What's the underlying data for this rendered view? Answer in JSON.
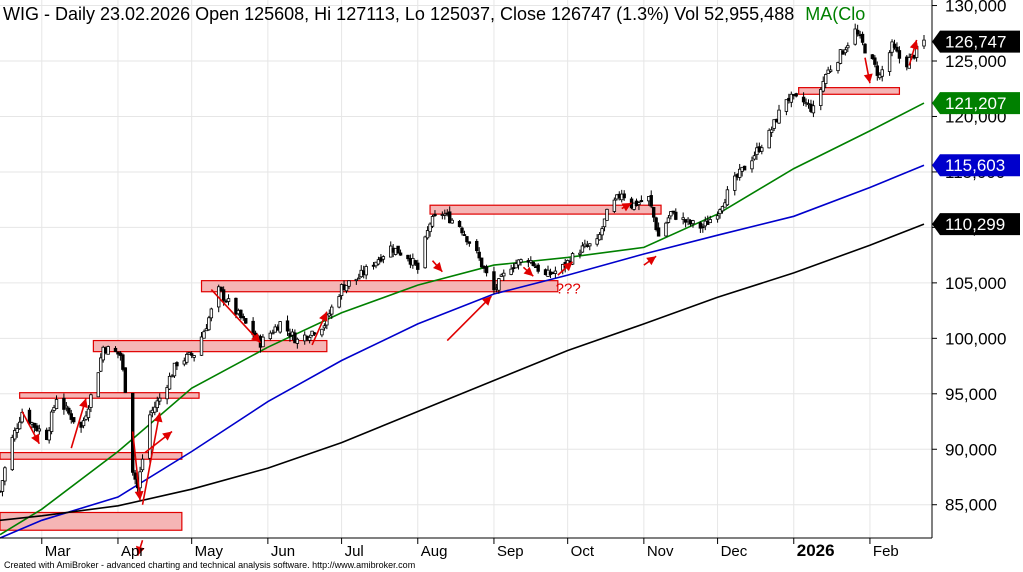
{
  "header": {
    "title_main": "WIG - Daily 23.02.2026 Open 125608, Hi 127113, Lo 125037, Close 126747 (1.3%) Vol 52,955,488",
    "title_ma": "MA(Clo"
  },
  "footer": {
    "credit": "Created with AmiBroker - advanced charting and technical analysis software. http://www.amibroker.com"
  },
  "annotation_text": "???",
  "colors": {
    "price": "#000000",
    "ma_green": "#008000",
    "ma_blue": "#0000cc",
    "ma_black": "#000000",
    "zone_fill": "#f5b5b5",
    "zone_stroke": "#e00000",
    "arrow": "#e00000",
    "ma_label_color": "#008000"
  },
  "chart_data": {
    "type": "candlestick",
    "title": "WIG - Daily 23.02.2026 Open 125608, Hi 127113, Lo 125037, Close 126747 (1.3%) Vol 52,955,488",
    "x_start": "2025-02-12",
    "x_end": "2026-02-23",
    "ylim": [
      82000,
      130500
    ],
    "y_ticks": [
      "130,000",
      "125,000",
      "120,000",
      "115,000",
      "110,000",
      "105,000",
      "100,000",
      "95,000",
      "90,000",
      "85,000"
    ],
    "y_tick_values": [
      130000,
      125000,
      120000,
      115000,
      110000,
      105000,
      100000,
      95000,
      90000,
      85000
    ],
    "x_ticks": [
      {
        "label": "Mar",
        "date": "2025-03-01",
        "bold": false
      },
      {
        "label": "Apr",
        "date": "2025-04-01",
        "bold": false
      },
      {
        "label": "May",
        "date": "2025-05-01",
        "bold": false
      },
      {
        "label": "Jun",
        "date": "2025-06-01",
        "bold": false
      },
      {
        "label": "Jul",
        "date": "2025-07-01",
        "bold": false
      },
      {
        "label": "Aug",
        "date": "2025-08-01",
        "bold": false
      },
      {
        "label": "Sep",
        "date": "2025-09-01",
        "bold": false
      },
      {
        "label": "Oct",
        "date": "2025-10-01",
        "bold": false
      },
      {
        "label": "Nov",
        "date": "2025-11-01",
        "bold": false
      },
      {
        "label": "Dec",
        "date": "2025-12-01",
        "bold": false
      },
      {
        "label": "2026",
        "date": "2026-01-01",
        "bold": true
      },
      {
        "label": "Feb",
        "date": "2026-02-01",
        "bold": false
      }
    ],
    "price_path": [
      {
        "date": "2025-02-12",
        "value": 86200
      },
      {
        "date": "2025-02-16",
        "value": 90300
      },
      {
        "date": "2025-02-21",
        "value": 93400
      },
      {
        "date": "2025-02-26",
        "value": 92100
      },
      {
        "date": "2025-03-03",
        "value": 91200
      },
      {
        "date": "2025-03-07",
        "value": 94700
      },
      {
        "date": "2025-03-12",
        "value": 93200
      },
      {
        "date": "2025-03-17",
        "value": 91900
      },
      {
        "date": "2025-03-23",
        "value": 96200
      },
      {
        "date": "2025-03-26",
        "value": 99200
      },
      {
        "date": "2025-04-02",
        "value": 98500
      },
      {
        "date": "2025-04-04",
        "value": 95500
      },
      {
        "date": "2025-04-07",
        "value": 88200
      },
      {
        "date": "2025-04-09",
        "value": 86500
      },
      {
        "date": "2025-04-14",
        "value": 93100
      },
      {
        "date": "2025-04-18",
        "value": 94600
      },
      {
        "date": "2025-04-25",
        "value": 97800
      },
      {
        "date": "2025-05-02",
        "value": 98600
      },
      {
        "date": "2025-05-07",
        "value": 101200
      },
      {
        "date": "2025-05-12",
        "value": 104300
      },
      {
        "date": "2025-05-20",
        "value": 102100
      },
      {
        "date": "2025-05-29",
        "value": 99600
      },
      {
        "date": "2025-06-06",
        "value": 101400
      },
      {
        "date": "2025-06-13",
        "value": 99800
      },
      {
        "date": "2025-06-24",
        "value": 101300
      },
      {
        "date": "2025-07-01",
        "value": 104600
      },
      {
        "date": "2025-07-08",
        "value": 105500
      },
      {
        "date": "2025-07-15",
        "value": 107000
      },
      {
        "date": "2025-07-21",
        "value": 108200
      },
      {
        "date": "2025-07-28",
        "value": 107400
      },
      {
        "date": "2025-08-01",
        "value": 106200
      },
      {
        "date": "2025-08-06",
        "value": 110400
      },
      {
        "date": "2025-08-11",
        "value": 111300
      },
      {
        "date": "2025-08-18",
        "value": 110200
      },
      {
        "date": "2025-08-25",
        "value": 107600
      },
      {
        "date": "2025-09-01",
        "value": 104300
      },
      {
        "date": "2025-09-08",
        "value": 106600
      },
      {
        "date": "2025-09-15",
        "value": 107200
      },
      {
        "date": "2025-09-22",
        "value": 105600
      },
      {
        "date": "2025-09-29",
        "value": 106400
      },
      {
        "date": "2025-10-06",
        "value": 108000
      },
      {
        "date": "2025-10-13",
        "value": 108600
      },
      {
        "date": "2025-10-17",
        "value": 111200
      },
      {
        "date": "2025-10-23",
        "value": 113200
      },
      {
        "date": "2025-10-27",
        "value": 112000
      },
      {
        "date": "2025-11-03",
        "value": 112600
      },
      {
        "date": "2025-11-07",
        "value": 109200
      },
      {
        "date": "2025-11-12",
        "value": 111300
      },
      {
        "date": "2025-11-19",
        "value": 110400
      },
      {
        "date": "2025-11-25",
        "value": 110000
      },
      {
        "date": "2025-12-01",
        "value": 111500
      },
      {
        "date": "2025-12-08",
        "value": 114200
      },
      {
        "date": "2025-12-15",
        "value": 116300
      },
      {
        "date": "2025-12-22",
        "value": 118400
      },
      {
        "date": "2025-12-29",
        "value": 121700
      },
      {
        "date": "2026-01-05",
        "value": 121300
      },
      {
        "date": "2026-01-09",
        "value": 120600
      },
      {
        "date": "2026-01-14",
        "value": 123800
      },
      {
        "date": "2026-01-20",
        "value": 125600
      },
      {
        "date": "2026-01-26",
        "value": 127700
      },
      {
        "date": "2026-02-01",
        "value": 125300
      },
      {
        "date": "2026-02-05",
        "value": 123600
      },
      {
        "date": "2026-02-10",
        "value": 126300
      },
      {
        "date": "2026-02-15",
        "value": 124600
      },
      {
        "date": "2026-02-19",
        "value": 125600
      },
      {
        "date": "2026-02-23",
        "value": 126747
      }
    ],
    "series": [
      {
        "color": "#008000",
        "label_value": "121,207",
        "points": [
          {
            "date": "2025-02-12",
            "value": 82300
          },
          {
            "date": "2025-03-01",
            "value": 84600
          },
          {
            "date": "2025-04-01",
            "value": 89800
          },
          {
            "date": "2025-05-01",
            "value": 95500
          },
          {
            "date": "2025-06-01",
            "value": 99200
          },
          {
            "date": "2025-07-01",
            "value": 102300
          },
          {
            "date": "2025-08-01",
            "value": 104800
          },
          {
            "date": "2025-09-01",
            "value": 106600
          },
          {
            "date": "2025-10-01",
            "value": 107300
          },
          {
            "date": "2025-11-01",
            "value": 108200
          },
          {
            "date": "2025-12-01",
            "value": 111200
          },
          {
            "date": "2026-01-01",
            "value": 115300
          },
          {
            "date": "2026-02-01",
            "value": 118700
          },
          {
            "date": "2026-02-23",
            "value": 121207
          }
        ]
      },
      {
        "color": "#0000cc",
        "label_value": "115,603",
        "points": [
          {
            "date": "2025-02-12",
            "value": 82000
          },
          {
            "date": "2025-03-01",
            "value": 83600
          },
          {
            "date": "2025-04-01",
            "value": 85700
          },
          {
            "date": "2025-05-01",
            "value": 89800
          },
          {
            "date": "2025-06-01",
            "value": 94300
          },
          {
            "date": "2025-07-01",
            "value": 98000
          },
          {
            "date": "2025-08-01",
            "value": 101300
          },
          {
            "date": "2025-09-01",
            "value": 104000
          },
          {
            "date": "2025-10-01",
            "value": 105700
          },
          {
            "date": "2025-11-01",
            "value": 107600
          },
          {
            "date": "2025-12-01",
            "value": 109300
          },
          {
            "date": "2026-01-01",
            "value": 111000
          },
          {
            "date": "2026-02-01",
            "value": 113600
          },
          {
            "date": "2026-02-23",
            "value": 115603
          }
        ]
      },
      {
        "color": "#000000",
        "label_value": "110,299",
        "points": [
          {
            "date": "2025-02-12",
            "value": 83600
          },
          {
            "date": "2025-03-01",
            "value": 84000
          },
          {
            "date": "2025-04-01",
            "value": 84900
          },
          {
            "date": "2025-05-01",
            "value": 86400
          },
          {
            "date": "2025-06-01",
            "value": 88300
          },
          {
            "date": "2025-07-01",
            "value": 90600
          },
          {
            "date": "2025-08-01",
            "value": 93400
          },
          {
            "date": "2025-09-01",
            "value": 96200
          },
          {
            "date": "2025-10-01",
            "value": 98900
          },
          {
            "date": "2025-11-01",
            "value": 101300
          },
          {
            "date": "2025-12-01",
            "value": 103700
          },
          {
            "date": "2026-01-01",
            "value": 105900
          },
          {
            "date": "2026-02-01",
            "value": 108400
          },
          {
            "date": "2026-02-23",
            "value": 110299
          }
        ]
      }
    ],
    "price_label": "126,747",
    "zones": [
      {
        "start": "2025-02-12",
        "end": "2025-04-27",
        "low": 82700,
        "high": 84300
      },
      {
        "start": "2025-02-12",
        "end": "2025-04-27",
        "low": 89100,
        "high": 89700
      },
      {
        "start": "2025-02-20",
        "end": "2025-05-04",
        "low": 94600,
        "high": 95100
      },
      {
        "start": "2025-03-22",
        "end": "2025-06-25",
        "low": 98800,
        "high": 99800
      },
      {
        "start": "2025-05-05",
        "end": "2025-09-27",
        "low": 104200,
        "high": 105200
      },
      {
        "start": "2025-08-06",
        "end": "2025-11-08",
        "low": 111200,
        "high": 112000
      },
      {
        "start": "2026-01-03",
        "end": "2026-02-13",
        "low": 122000,
        "high": 122600
      }
    ],
    "arrows": [
      {
        "from_date": "2025-02-21",
        "from_value": 93400,
        "to_date": "2025-02-28",
        "to_value": 90500
      },
      {
        "from_date": "2025-03-13",
        "from_value": 90100,
        "to_date": "2025-03-19",
        "to_value": 94600
      },
      {
        "from_date": "2025-04-07",
        "from_value": 91600,
        "to_date": "2025-04-10",
        "to_value": 85400
      },
      {
        "from_date": "2025-04-11",
        "from_value": 85000,
        "to_date": "2025-04-18",
        "to_value": 93300
      },
      {
        "from_date": "2025-04-12",
        "from_value": 89700,
        "to_date": "2025-04-23",
        "to_value": 91600
      },
      {
        "from_date": "2025-04-11",
        "from_value": 81800,
        "to_date": "2025-04-09",
        "to_value": 80400
      },
      {
        "from_date": "2025-05-09",
        "from_value": 104400,
        "to_date": "2025-05-29",
        "to_value": 99600
      },
      {
        "from_date": "2025-06-19",
        "from_value": 99400,
        "to_date": "2025-06-25",
        "to_value": 102400
      },
      {
        "from_date": "2025-08-07",
        "from_value": 107000,
        "to_date": "2025-08-11",
        "to_value": 106000
      },
      {
        "from_date": "2025-08-13",
        "from_value": 99800,
        "to_date": "2025-08-31",
        "to_value": 103800
      },
      {
        "from_date": "2025-09-13",
        "from_value": 106400,
        "to_date": "2025-09-17",
        "to_value": 105600
      },
      {
        "from_date": "2025-09-27",
        "from_value": 105700,
        "to_date": "2025-10-03",
        "to_value": 106900
      },
      {
        "from_date": "2025-10-23",
        "from_value": 111700,
        "to_date": "2025-10-27",
        "to_value": 112200
      },
      {
        "from_date": "2025-11-01",
        "from_value": 106600,
        "to_date": "2025-11-06",
        "to_value": 107400
      },
      {
        "from_date": "2026-01-30",
        "from_value": 125300,
        "to_date": "2026-02-01",
        "to_value": 123000
      },
      {
        "from_date": "2026-02-17",
        "from_value": 124600,
        "to_date": "2026-02-20",
        "to_value": 126900
      }
    ],
    "annotation": {
      "date": "2025-10-01",
      "value": 104500
    }
  }
}
